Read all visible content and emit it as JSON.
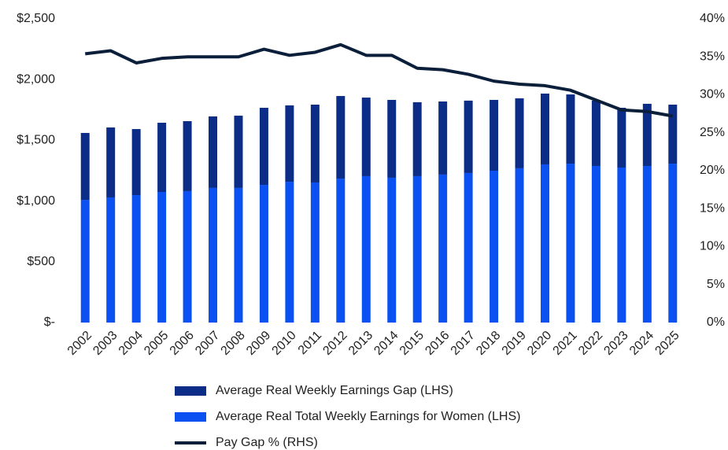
{
  "chart_data": {
    "type": "bar",
    "categories": [
      "2002",
      "2003",
      "2004",
      "2005",
      "2006",
      "2007",
      "2008",
      "2009",
      "2010",
      "2011",
      "2012",
      "2013",
      "2014",
      "2015",
      "2016",
      "2017",
      "2018",
      "2019",
      "2020",
      "2021",
      "2022",
      "2023",
      "2024",
      "2025"
    ],
    "series": [
      {
        "name": "Average Real Weekly Earnings Gap (LHS)",
        "color": "#0c2d87",
        "type": "bar",
        "values": [
          551,
          576,
          544,
          570,
          576,
          589,
          595,
          635,
          629,
          641,
          680,
          647,
          641,
          609,
          602,
          596,
          583,
          576,
          583,
          570,
          538,
          492,
          512,
          486
        ]
      },
      {
        "name": "Average Real Total Weekly Earnings for Women (LHS)",
        "color": "#0b50f0",
        "type": "bar",
        "values": [
          1010,
          1030,
          1049,
          1075,
          1082,
          1108,
          1108,
          1133,
          1159,
          1153,
          1185,
          1205,
          1192,
          1205,
          1218,
          1231,
          1250,
          1270,
          1302,
          1308,
          1289,
          1276,
          1289,
          1308
        ]
      },
      {
        "name": "Pay Gap % (RHS)",
        "color": "#0b1f3a",
        "type": "line",
        "axis": "y2",
        "values": [
          35.4,
          35.8,
          34.2,
          34.8,
          35.0,
          35.0,
          35.0,
          36.0,
          35.2,
          35.6,
          36.6,
          35.2,
          35.2,
          33.5,
          33.3,
          32.7,
          31.8,
          31.4,
          31.2,
          30.6,
          29.3,
          28.0,
          27.8,
          27.2
        ]
      }
    ],
    "ylim": [
      0,
      2500
    ],
    "yticks": [
      {
        "value": 0,
        "label": "$-"
      },
      {
        "value": 500,
        "label": "$500"
      },
      {
        "value": 1000,
        "label": "$1,000"
      },
      {
        "value": 1500,
        "label": "$1,500"
      },
      {
        "value": 2000,
        "label": "$2,000"
      },
      {
        "value": 2500,
        "label": "$2,500"
      }
    ],
    "y2lim": [
      0,
      40
    ],
    "y2ticks": [
      {
        "value": 0,
        "label": "0%"
      },
      {
        "value": 5,
        "label": "5%"
      },
      {
        "value": 10,
        "label": "10%"
      },
      {
        "value": 15,
        "label": "15%"
      },
      {
        "value": 20,
        "label": "20%"
      },
      {
        "value": 25,
        "label": "25%"
      },
      {
        "value": 30,
        "label": "30%"
      },
      {
        "value": 35,
        "label": "35%"
      },
      {
        "value": 40,
        "label": "40%"
      }
    ],
    "grid": false,
    "legend": "bottom"
  }
}
